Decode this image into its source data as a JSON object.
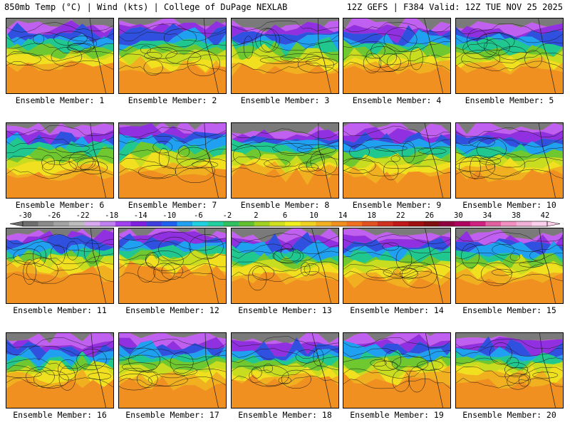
{
  "header": {
    "left": "850mb Temp (°C) | Wind (kts) | College of DuPage NEXLAB",
    "right": "12Z GEFS | F384 Valid: 12Z TUE NOV 25 2025"
  },
  "colorbar": {
    "ticks": [
      "-30",
      "-26",
      "-22",
      "-18",
      "-14",
      "-10",
      "-6",
      "-2",
      "2",
      "6",
      "10",
      "14",
      "18",
      "22",
      "26",
      "30",
      "34",
      "38",
      "42"
    ],
    "colors": [
      "#6e6e6e",
      "#8a8a8a",
      "#a3a3a3",
      "#bcbcbc",
      "#d8a8f0",
      "#c080f0",
      "#a040f0",
      "#8020e0",
      "#4040e0",
      "#2060f0",
      "#20a0f0",
      "#20d0e0",
      "#20d0a0",
      "#30c060",
      "#60c030",
      "#a0d020",
      "#d0e020",
      "#f0f020",
      "#f0d020",
      "#f0b020",
      "#f09020",
      "#f07020",
      "#e05020",
      "#d03020",
      "#c01818",
      "#a01010",
      "#801010",
      "#900040",
      "#b00060",
      "#d02080",
      "#e060a0",
      "#f090c0",
      "#f0b0d8",
      "#ffd0ee"
    ]
  },
  "members": [
    {
      "label": "Ensemble Member: 1"
    },
    {
      "label": "Ensemble Member: 2"
    },
    {
      "label": "Ensemble Member: 3"
    },
    {
      "label": "Ensemble Member: 4"
    },
    {
      "label": "Ensemble Member: 5"
    },
    {
      "label": "Ensemble Member: 6"
    },
    {
      "label": "Ensemble Member: 7"
    },
    {
      "label": "Ensemble Member: 8"
    },
    {
      "label": "Ensemble Member: 9"
    },
    {
      "label": "Ensemble Member: 10"
    },
    {
      "label": "Ensemble Member: 11"
    },
    {
      "label": "Ensemble Member: 12"
    },
    {
      "label": "Ensemble Member: 13"
    },
    {
      "label": "Ensemble Member: 14"
    },
    {
      "label": "Ensemble Member: 15"
    },
    {
      "label": "Ensemble Member: 16"
    },
    {
      "label": "Ensemble Member: 17"
    },
    {
      "label": "Ensemble Member: 18"
    },
    {
      "label": "Ensemble Member: 19"
    },
    {
      "label": "Ensemble Member: 20"
    }
  ]
}
